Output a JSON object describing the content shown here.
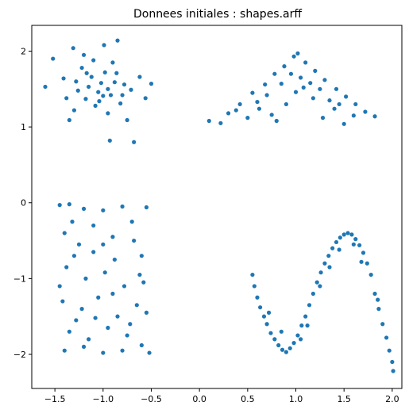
{
  "chart_data": {
    "type": "scatter",
    "title": "Donnees initiales : shapes.arff",
    "xlabel": "",
    "ylabel": "",
    "xlim": [
      -1.74,
      2.1
    ],
    "ylim": [
      -2.45,
      2.34
    ],
    "grid": false,
    "marker_color": "#1f77b4",
    "x_ticks": [
      -1.5,
      -1.0,
      -0.5,
      0.0,
      0.5,
      1.0,
      1.5,
      2.0
    ],
    "x_tick_labels": [
      "−1.5",
      "−1.0",
      "−0.5",
      "0.0",
      "0.5",
      "1.0",
      "1.5",
      "2.0"
    ],
    "y_ticks": [
      -2,
      -1,
      0,
      1,
      2
    ],
    "y_tick_labels": [
      "−2",
      "−1",
      "0",
      "1",
      "2"
    ],
    "clusters": [
      {
        "shape": "gaussian-blob",
        "points": [
          [
            -1.52,
            1.9
          ],
          [
            -1.31,
            2.04
          ],
          [
            -0.99,
            2.08
          ],
          [
            -0.85,
            2.14
          ],
          [
            -1.6,
            1.53
          ],
          [
            -0.5,
            1.57
          ],
          [
            -0.56,
            1.38
          ],
          [
            -0.75,
            1.09
          ],
          [
            -0.93,
            0.82
          ],
          [
            -0.68,
            0.8
          ],
          [
            -1.35,
            1.09
          ],
          [
            -1.2,
            1.95
          ],
          [
            -1.02,
            1.58
          ],
          [
            -0.92,
            1.42
          ],
          [
            -1.12,
            1.66
          ],
          [
            -0.86,
            1.71
          ],
          [
            -1.26,
            1.48
          ],
          [
            -0.78,
            1.56
          ],
          [
            -1.08,
            1.28
          ],
          [
            -1.18,
            1.37
          ],
          [
            -0.98,
            1.72
          ],
          [
            -1.41,
            1.64
          ],
          [
            -0.82,
            1.31
          ],
          [
            -1.05,
            1.46
          ],
          [
            -0.95,
            1.18
          ],
          [
            -1.3,
            1.22
          ],
          [
            -0.71,
            1.49
          ],
          [
            -1.22,
            1.78
          ],
          [
            -0.9,
            1.85
          ],
          [
            -1.15,
            1.53
          ],
          [
            -1.0,
            1.41
          ],
          [
            -0.62,
            1.66
          ],
          [
            -1.38,
            1.38
          ],
          [
            -0.88,
            1.59
          ],
          [
            -1.1,
            1.88
          ],
          [
            -0.95,
            1.5
          ],
          [
            -1.28,
            1.6
          ],
          [
            -0.8,
            1.42
          ],
          [
            -1.04,
            1.34
          ],
          [
            -1.17,
            1.71
          ]
        ]
      },
      {
        "shape": "triangle",
        "points": [
          [
            0.1,
            1.08
          ],
          [
            0.22,
            1.05
          ],
          [
            0.3,
            1.18
          ],
          [
            0.42,
            1.3
          ],
          [
            0.55,
            1.45
          ],
          [
            0.68,
            1.56
          ],
          [
            0.78,
            1.7
          ],
          [
            0.88,
            1.8
          ],
          [
            0.98,
            1.93
          ],
          [
            1.02,
            1.97
          ],
          [
            1.1,
            1.85
          ],
          [
            1.2,
            1.74
          ],
          [
            1.3,
            1.62
          ],
          [
            1.42,
            1.5
          ],
          [
            1.52,
            1.4
          ],
          [
            1.62,
            1.3
          ],
          [
            1.72,
            1.2
          ],
          [
            1.82,
            1.14
          ],
          [
            0.5,
            1.12
          ],
          [
            0.62,
            1.24
          ],
          [
            0.75,
            1.16
          ],
          [
            0.9,
            1.3
          ],
          [
            1.0,
            1.46
          ],
          [
            1.08,
            1.52
          ],
          [
            1.18,
            1.38
          ],
          [
            1.28,
            1.12
          ],
          [
            1.4,
            1.24
          ],
          [
            1.5,
            1.04
          ],
          [
            0.85,
            1.57
          ],
          [
            0.95,
            1.7
          ],
          [
            1.05,
            1.65
          ],
          [
            1.15,
            1.58
          ],
          [
            0.7,
            1.42
          ],
          [
            1.35,
            1.35
          ],
          [
            0.38,
            1.22
          ],
          [
            1.6,
            1.15
          ],
          [
            0.8,
            1.08
          ],
          [
            1.25,
            1.5
          ],
          [
            0.6,
            1.33
          ],
          [
            1.45,
            1.3
          ]
        ]
      },
      {
        "shape": "uniform-rectangle",
        "points": [
          [
            -1.45,
            -0.03
          ],
          [
            -1.35,
            -0.02
          ],
          [
            -1.2,
            -0.08
          ],
          [
            -1.0,
            -0.1
          ],
          [
            -0.8,
            -0.05
          ],
          [
            -0.55,
            -0.06
          ],
          [
            -1.4,
            -0.4
          ],
          [
            -1.25,
            -0.55
          ],
          [
            -1.1,
            -0.3
          ],
          [
            -0.9,
            -0.45
          ],
          [
            -0.7,
            -0.25
          ],
          [
            -0.6,
            -0.7
          ],
          [
            -1.38,
            -0.85
          ],
          [
            -1.18,
            -1.0
          ],
          [
            -0.98,
            -0.92
          ],
          [
            -0.78,
            -1.1
          ],
          [
            -0.58,
            -1.05
          ],
          [
            -1.42,
            -1.3
          ],
          [
            -1.22,
            -1.4
          ],
          [
            -1.05,
            -1.25
          ],
          [
            -0.85,
            -1.5
          ],
          [
            -0.65,
            -1.35
          ],
          [
            -1.35,
            -1.7
          ],
          [
            -1.15,
            -1.8
          ],
          [
            -0.95,
            -1.65
          ],
          [
            -0.75,
            -1.75
          ],
          [
            -0.52,
            -1.98
          ],
          [
            -1.4,
            -1.95
          ],
          [
            -1.2,
            -1.9
          ],
          [
            -1.0,
            -1.98
          ],
          [
            -0.8,
            -1.95
          ],
          [
            -0.6,
            -1.88
          ],
          [
            -1.3,
            -0.7
          ],
          [
            -1.1,
            -0.65
          ],
          [
            -0.88,
            -0.75
          ],
          [
            -0.68,
            -0.5
          ],
          [
            -1.45,
            -1.1
          ],
          [
            -1.28,
            -1.55
          ],
          [
            -1.08,
            -1.52
          ],
          [
            -0.9,
            -1.2
          ],
          [
            -0.72,
            -1.6
          ],
          [
            -0.55,
            -1.45
          ],
          [
            -1.32,
            -0.25
          ],
          [
            -1.0,
            -0.55
          ],
          [
            -0.62,
            -0.95
          ]
        ]
      },
      {
        "shape": "sine-wave",
        "points": [
          [
            0.55,
            -0.95
          ],
          [
            0.57,
            -1.1
          ],
          [
            0.6,
            -1.25
          ],
          [
            0.63,
            -1.38
          ],
          [
            0.67,
            -1.5
          ],
          [
            0.7,
            -1.6
          ],
          [
            0.74,
            -1.72
          ],
          [
            0.78,
            -1.8
          ],
          [
            0.82,
            -1.88
          ],
          [
            0.86,
            -1.94
          ],
          [
            0.9,
            -1.97
          ],
          [
            0.94,
            -1.92
          ],
          [
            0.98,
            -1.85
          ],
          [
            1.02,
            -1.75
          ],
          [
            1.06,
            -1.62
          ],
          [
            1.1,
            -1.5
          ],
          [
            1.14,
            -1.35
          ],
          [
            1.18,
            -1.2
          ],
          [
            1.22,
            -1.05
          ],
          [
            1.26,
            -0.92
          ],
          [
            1.3,
            -0.8
          ],
          [
            1.34,
            -0.7
          ],
          [
            1.38,
            -0.6
          ],
          [
            1.42,
            -0.52
          ],
          [
            1.46,
            -0.46
          ],
          [
            1.5,
            -0.42
          ],
          [
            1.54,
            -0.4
          ],
          [
            1.58,
            -0.42
          ],
          [
            1.62,
            -0.48
          ],
          [
            1.66,
            -0.56
          ],
          [
            1.7,
            -0.66
          ],
          [
            1.74,
            -0.8
          ],
          [
            1.78,
            -0.95
          ],
          [
            1.82,
            -1.2
          ],
          [
            1.86,
            -1.4
          ],
          [
            1.9,
            -1.6
          ],
          [
            1.94,
            -1.78
          ],
          [
            1.97,
            -1.95
          ],
          [
            2.0,
            -2.1
          ],
          [
            2.01,
            -2.22
          ],
          [
            0.85,
            -1.7
          ],
          [
            1.05,
            -1.8
          ],
          [
            1.25,
            -1.1
          ],
          [
            1.45,
            -0.62
          ],
          [
            1.68,
            -0.78
          ],
          [
            0.72,
            -1.45
          ],
          [
            1.12,
            -1.62
          ],
          [
            1.35,
            -0.85
          ],
          [
            1.6,
            -0.55
          ],
          [
            1.85,
            -1.28
          ]
        ]
      }
    ]
  }
}
